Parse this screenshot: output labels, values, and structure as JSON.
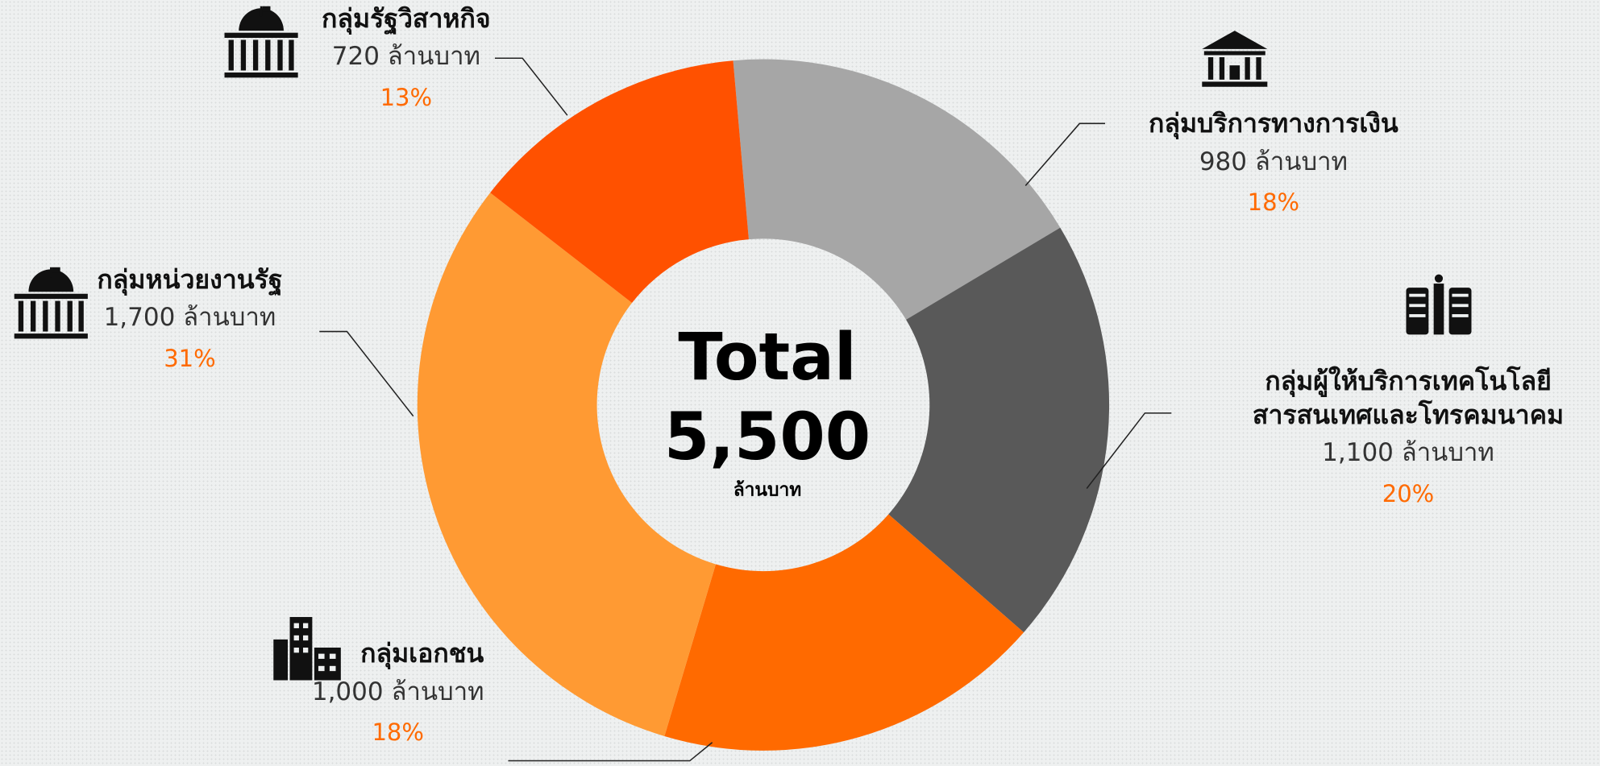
{
  "chart_data": {
    "type": "donut",
    "categories": [
      "กลุ่มบริการทางการเงิน",
      "กลุ่มผู้ให้บริการเทคโนโลยีสารสนเทศและโทรคมนาคม",
      "กลุ่มเอกชน",
      "กลุ่มหน่วยงานรัฐ",
      "กลุ่มรัฐวิสาหกิจ"
    ],
    "values": [
      980,
      1100,
      1000,
      1700,
      720
    ],
    "value_labels": [
      "980 ล้านบาท",
      "1,100 ล้านบาท",
      "1,000 ล้านบาท",
      "1,700 ล้านบาท",
      "720 ล้านบาท"
    ],
    "percent_labels": [
      "18%",
      "20%",
      "18%",
      "31%",
      "13%"
    ],
    "colors": [
      "#a6a6a6",
      "#595959",
      "#ff6a00",
      "#ff9a33",
      "#ff5100"
    ],
    "center_title": "Total",
    "total_label": "5,500",
    "total_unit": "ล้านบาท"
  }
}
